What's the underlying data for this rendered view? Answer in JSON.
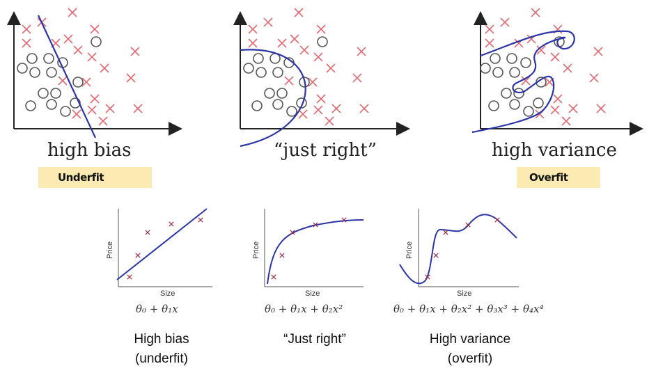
{
  "top_panels": [
    {
      "caption": "high bias",
      "tag": "Underfit"
    },
    {
      "caption": "“just right”"
    },
    {
      "caption": "high variance",
      "tag": "Overfit"
    }
  ],
  "bottom_panels": [
    {
      "axis_x": "Size",
      "axis_y": "Price",
      "formula": "θ₀ + θ₁x",
      "caption_line1": "High bias",
      "caption_line2": "(underfit)"
    },
    {
      "axis_x": "Size",
      "axis_y": "Price",
      "formula": "θ₀ + θ₁x + θ₂x²",
      "caption_line1": "“Just right”",
      "caption_line2": ""
    },
    {
      "axis_x": "Size",
      "axis_y": "Price",
      "formula": "θ₀ + θ₁x + θ₂x² + θ₃x³ + θ₄x⁴",
      "caption_line1": "High variance",
      "caption_line2": "(overfit)"
    }
  ],
  "colors": {
    "cross": "#e06a72",
    "circle": "#555555",
    "boundary": "#2b35a8",
    "axis": "#222222",
    "tag_background": "#fbeab2",
    "small_cross": "#9b2d4a"
  }
}
